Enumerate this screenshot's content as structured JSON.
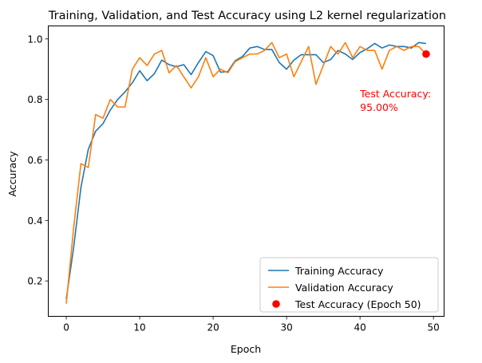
{
  "chart_data": {
    "type": "line",
    "title": "Training, Validation, and Test Accuracy using L2 kernel regularization",
    "xlabel": "Epoch",
    "ylabel": "Accuracy",
    "xlim": [
      -2.45,
      51.45
    ],
    "ylim": [
      0.083,
      1.043
    ],
    "xticks": [
      0,
      10,
      20,
      30,
      40,
      50
    ],
    "xtick_labels": [
      "0",
      "10",
      "20",
      "30",
      "40",
      "50"
    ],
    "yticks": [
      0.2,
      0.4,
      0.6,
      0.8,
      1.0
    ],
    "ytick_labels": [
      "0.2",
      "0.4",
      "0.6",
      "0.8",
      "1.0"
    ],
    "grid": false,
    "legend_position": "lower-right",
    "x": [
      0,
      1,
      2,
      3,
      4,
      5,
      6,
      7,
      8,
      9,
      10,
      11,
      12,
      13,
      14,
      15,
      16,
      17,
      18,
      19,
      20,
      21,
      22,
      23,
      24,
      25,
      26,
      27,
      28,
      29,
      30,
      31,
      32,
      33,
      34,
      35,
      36,
      37,
      38,
      39,
      40,
      41,
      42,
      43,
      44,
      45,
      46,
      47,
      48,
      49
    ],
    "series": [
      {
        "name": "Training Accuracy",
        "color": "#1f77b4",
        "values": [
          0.14,
          0.31,
          0.51,
          0.635,
          0.695,
          0.72,
          0.765,
          0.8,
          0.825,
          0.855,
          0.895,
          0.862,
          0.885,
          0.93,
          0.915,
          0.908,
          0.915,
          0.882,
          0.922,
          0.958,
          0.945,
          0.89,
          0.892,
          0.928,
          0.942,
          0.97,
          0.975,
          0.965,
          0.965,
          0.922,
          0.9,
          0.93,
          0.948,
          0.948,
          0.948,
          0.922,
          0.932,
          0.962,
          0.95,
          0.932,
          0.955,
          0.968,
          0.985,
          0.97,
          0.98,
          0.975,
          0.975,
          0.97,
          0.988,
          0.985
        ]
      },
      {
        "name": "Validation Accuracy",
        "color": "#ff7f0e",
        "values": [
          0.125,
          0.375,
          0.588,
          0.575,
          0.75,
          0.738,
          0.8,
          0.775,
          0.775,
          0.9,
          0.938,
          0.912,
          0.95,
          0.962,
          0.888,
          0.912,
          0.875,
          0.838,
          0.875,
          0.938,
          0.875,
          0.9,
          0.888,
          0.925,
          0.938,
          0.95,
          0.95,
          0.962,
          0.988,
          0.938,
          0.95,
          0.875,
          0.925,
          0.975,
          0.85,
          0.912,
          0.975,
          0.95,
          0.988,
          0.938,
          0.975,
          0.962,
          0.962,
          0.9,
          0.962,
          0.975,
          0.962,
          0.975,
          0.975,
          0.95
        ]
      }
    ],
    "test_point": {
      "name": "Test Accuracy (Epoch 50)",
      "x": 49,
      "y": 0.95,
      "color": "#ff0000"
    },
    "annotation": {
      "line1": "Test Accuracy:",
      "line2": "95.00%",
      "x": 40,
      "color": "#ff0000"
    }
  }
}
